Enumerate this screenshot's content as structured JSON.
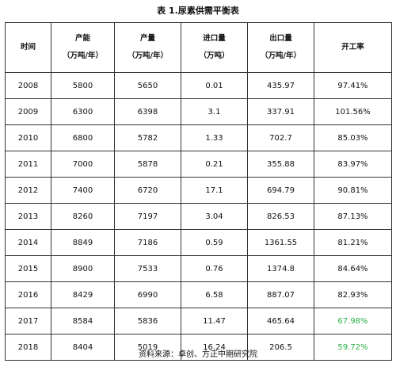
{
  "title": "表 1.尿素供需平衡表",
  "columns": [
    {
      "line1": "时间",
      "line2": ""
    },
    {
      "line1": "产能",
      "line2": "（万吨/年）"
    },
    {
      "line1": "产量",
      "line2": "（万吨/年）"
    },
    {
      "line1": "进口量",
      "line2": "（万吨）"
    },
    {
      "line1": "出口量",
      "line2": "（万吨/年）"
    },
    {
      "line1": "开工率",
      "line2": ""
    }
  ],
  "rows": [
    [
      "2008",
      "5800",
      "5650",
      "0.01",
      "435.97",
      "97.41%"
    ],
    [
      "2009",
      "6300",
      "6398",
      "3.1",
      "337.91",
      "101.56%"
    ],
    [
      "2010",
      "6800",
      "5782",
      "1.33",
      "702.7",
      "85.03%"
    ],
    [
      "2011",
      "7000",
      "5878",
      "0.21",
      "355.88",
      "83.97%"
    ],
    [
      "2012",
      "7400",
      "6720",
      "17.1",
      "694.79",
      "90.81%"
    ],
    [
      "2013",
      "8260",
      "7197",
      "3.04",
      "826.53",
      "87.13%"
    ],
    [
      "2014",
      "8849",
      "7186",
      "0.59",
      "1361.55",
      "81.21%"
    ],
    [
      "2015",
      "8900",
      "7533",
      "0.76",
      "1374.8",
      "84.64%"
    ],
    [
      "2016",
      "8429",
      "6990",
      "6.58",
      "887.07",
      "82.93%"
    ],
    [
      "2017",
      "8584",
      "5836",
      "11.47",
      "465.64",
      "67.98%"
    ],
    [
      "2018",
      "8404",
      "5019",
      "16.24",
      "206.5",
      "59.72%"
    ]
  ],
  "highlight_color": "#2bb24c",
  "text_color": "#111111",
  "highlighted_rows": [
    9,
    10
  ],
  "source": "资料来源：卓创、方正中期研究院"
}
